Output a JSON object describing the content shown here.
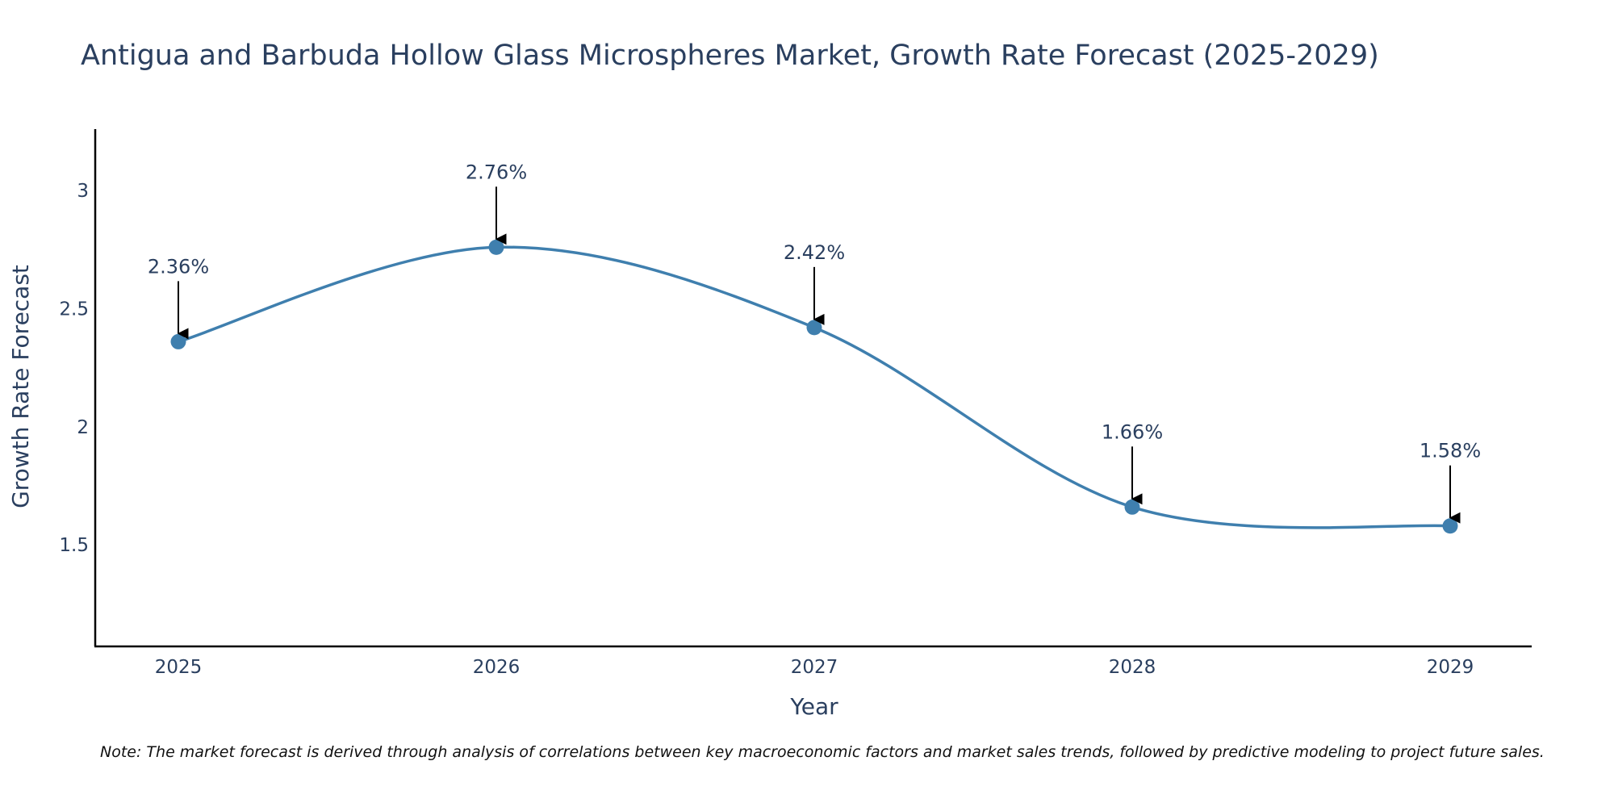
{
  "chart_data": {
    "type": "line",
    "title": "Antigua and Barbuda Hollow Glass Microspheres Market, Growth Rate Forecast (2025-2029)",
    "xlabel": "Year",
    "ylabel": "Growth Rate Forecast",
    "categories": [
      "2025",
      "2026",
      "2027",
      "2028",
      "2029"
    ],
    "values": [
      2.36,
      2.76,
      2.42,
      1.66,
      1.58
    ],
    "data_labels": [
      "2.36%",
      "2.76%",
      "2.42%",
      "1.66%",
      "1.58%"
    ],
    "y_ticks": [
      1.5,
      2,
      2.5,
      3
    ],
    "y_tick_labels": [
      "1.5",
      "2",
      "2.5",
      "3"
    ],
    "ylim": [
      1.07,
      3.26
    ],
    "grid": false,
    "line_shape": "spline",
    "line_color": "#3f7fae",
    "marker_color": "#3f7fae",
    "arrow_color": "#000000",
    "note": "Note: The market forecast is derived through analysis of correlations between key macroeconomic factors and market sales trends, followed by predictive modeling to project future sales."
  }
}
